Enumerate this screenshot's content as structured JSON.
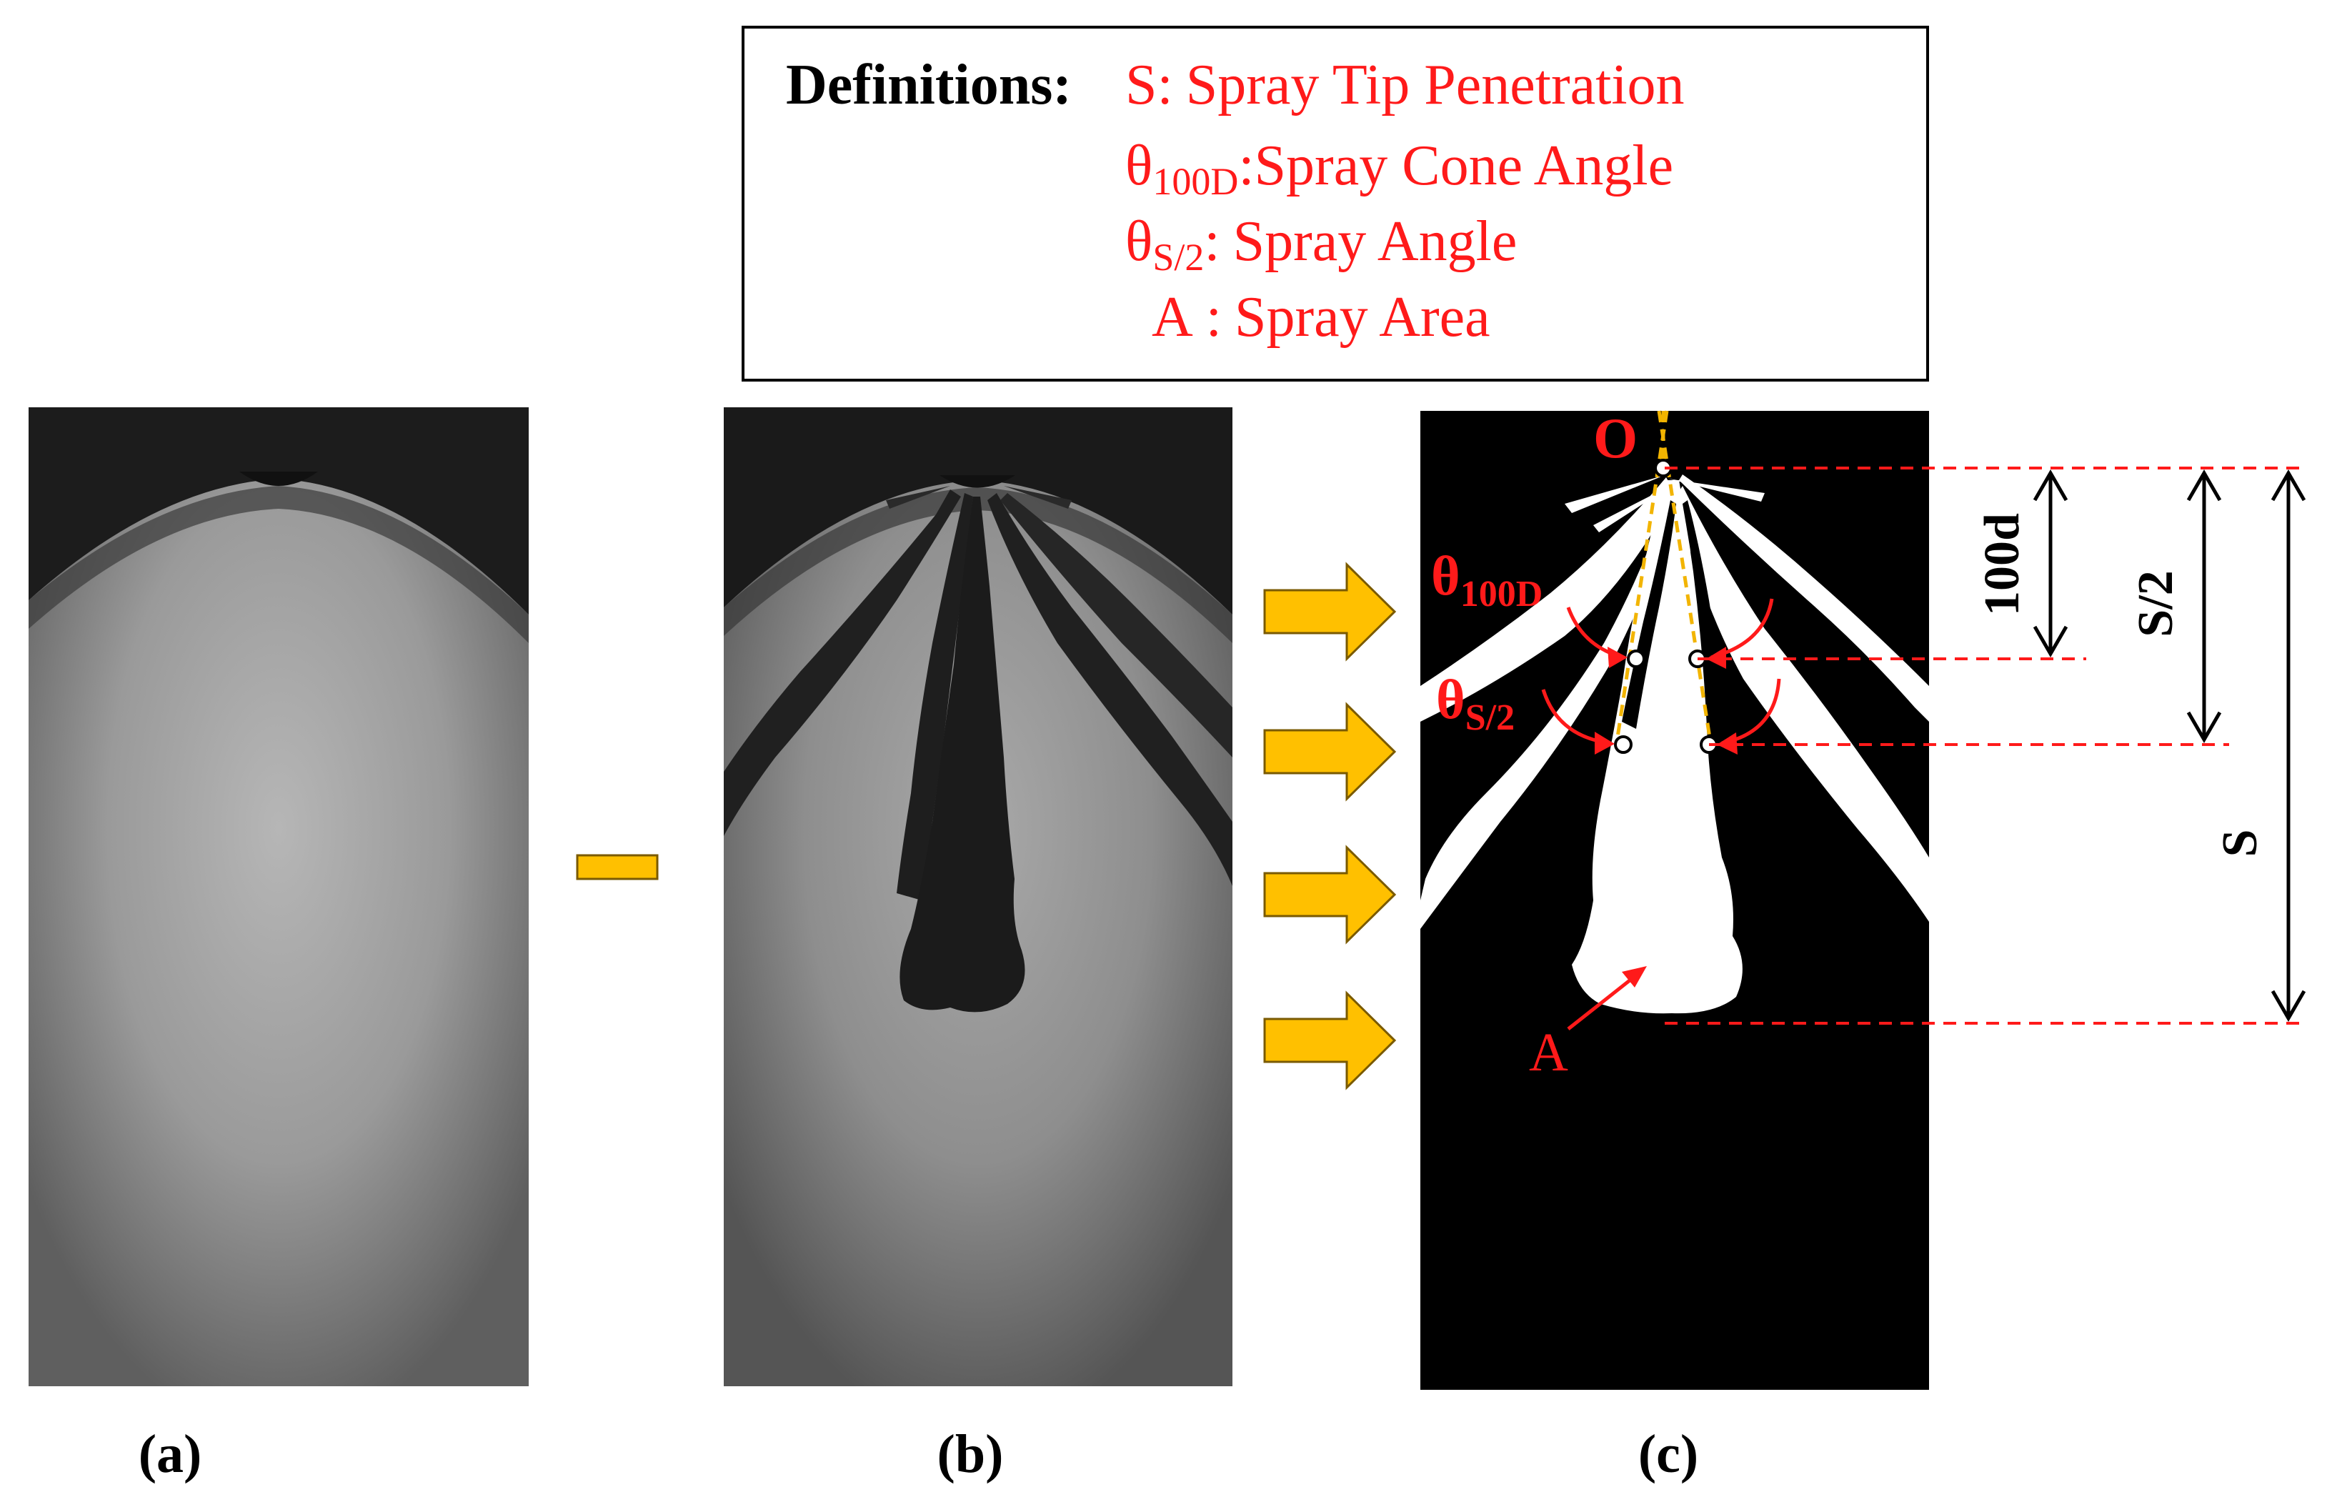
{
  "definitions": {
    "heading": "Definitions:",
    "items": [
      {
        "symbol": "S",
        "subscript": "",
        "separator": ":",
        "text": "Spray Tip Penetration"
      },
      {
        "symbol": "θ",
        "subscript": "100D",
        "separator": ":",
        "text": "Spray Cone Angle"
      },
      {
        "symbol": "θ",
        "subscript": "S/2",
        "separator": ":",
        "text": "Spray Angle"
      },
      {
        "symbol": "A",
        "subscript": "",
        "separator": ":",
        "text": "Spray Area"
      }
    ]
  },
  "panels": {
    "a": {
      "caption": "(a)"
    },
    "b": {
      "caption": "(b)"
    },
    "c": {
      "caption": "(c)",
      "origin_label": "O",
      "theta100d": {
        "symbol": "θ",
        "subscript": "100D"
      },
      "thetas2": {
        "symbol": "θ",
        "subscript": "S/2"
      },
      "area_label": "A"
    }
  },
  "dimensions": {
    "d100": "100d",
    "half_s": "S/2",
    "s": "S"
  },
  "operator": "minus",
  "colors": {
    "accent_red": "#ff1a1a",
    "arrow_orange": "#ffc000",
    "guide_line": "#f2b400"
  },
  "arrows": {
    "count": 4
  }
}
